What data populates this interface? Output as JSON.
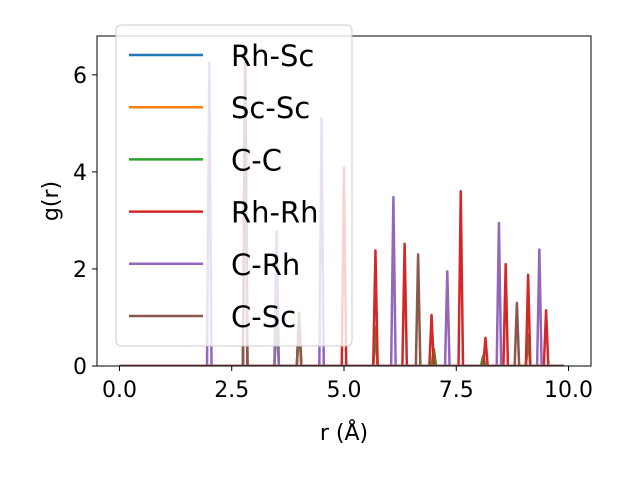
{
  "chart_data": {
    "type": "line",
    "xlabel": "r (Å)",
    "ylabel": "g(r)",
    "xlim": [
      -0.5,
      10.5
    ],
    "ylim": [
      0,
      6.8
    ],
    "xticks": [
      0.0,
      2.5,
      5.0,
      7.5,
      10.0
    ],
    "xtick_labels": [
      "0.0",
      "2.5",
      "5.0",
      "7.5",
      "10.0"
    ],
    "yticks": [
      0,
      2,
      4,
      6
    ],
    "ytick_labels": [
      "0",
      "2",
      "4",
      "6"
    ],
    "grid": false,
    "legend_position": "upper-left",
    "x_range": [
      0,
      9.9
    ],
    "series": [
      {
        "name": "Rh-Sc",
        "color": "#1f77b4",
        "peaks": [
          [
            2.8,
            6.4
          ],
          [
            4.0,
            1.0
          ],
          [
            5.7,
            0.8
          ],
          [
            7.0,
            0.3
          ],
          [
            8.1,
            0.2
          ],
          [
            9.1,
            0.6
          ]
        ]
      },
      {
        "name": "Sc-Sc",
        "color": "#ff7f0e",
        "peaks": [
          [
            3.5,
            1.0
          ],
          [
            4.0,
            1.0
          ],
          [
            5.7,
            0.8
          ],
          [
            7.0,
            0.35
          ],
          [
            8.1,
            0.2
          ],
          [
            9.1,
            0.6
          ]
        ]
      },
      {
        "name": "C-C",
        "color": "#2ca02c",
        "peaks": [
          [
            3.5,
            1.1
          ],
          [
            4.0,
            1.1
          ],
          [
            5.7,
            0.8
          ],
          [
            7.0,
            0.35
          ],
          [
            8.1,
            0.2
          ],
          [
            9.1,
            0.65
          ]
        ]
      },
      {
        "name": "Rh-Rh",
        "color": "#d62728",
        "peaks": [
          [
            2.8,
            6.5
          ],
          [
            5.0,
            4.1
          ],
          [
            5.7,
            2.38
          ],
          [
            6.35,
            2.52
          ],
          [
            6.95,
            1.05
          ],
          [
            7.6,
            3.6
          ],
          [
            8.15,
            0.58
          ],
          [
            8.6,
            2.1
          ],
          [
            9.1,
            1.88
          ],
          [
            9.5,
            1.15
          ]
        ]
      },
      {
        "name": "C-Rh",
        "color": "#9467bd",
        "peaks": [
          [
            2.0,
            6.25
          ],
          [
            3.5,
            2.78
          ],
          [
            4.5,
            5.1
          ],
          [
            6.1,
            3.48
          ],
          [
            7.3,
            1.95
          ],
          [
            8.45,
            2.95
          ],
          [
            9.35,
            2.4
          ]
        ]
      },
      {
        "name": "C-Sc",
        "color": "#8c564b",
        "peaks": [
          [
            2.8,
            6.4
          ],
          [
            4.0,
            1.0
          ],
          [
            6.65,
            2.3
          ],
          [
            8.85,
            1.3
          ]
        ]
      }
    ]
  }
}
